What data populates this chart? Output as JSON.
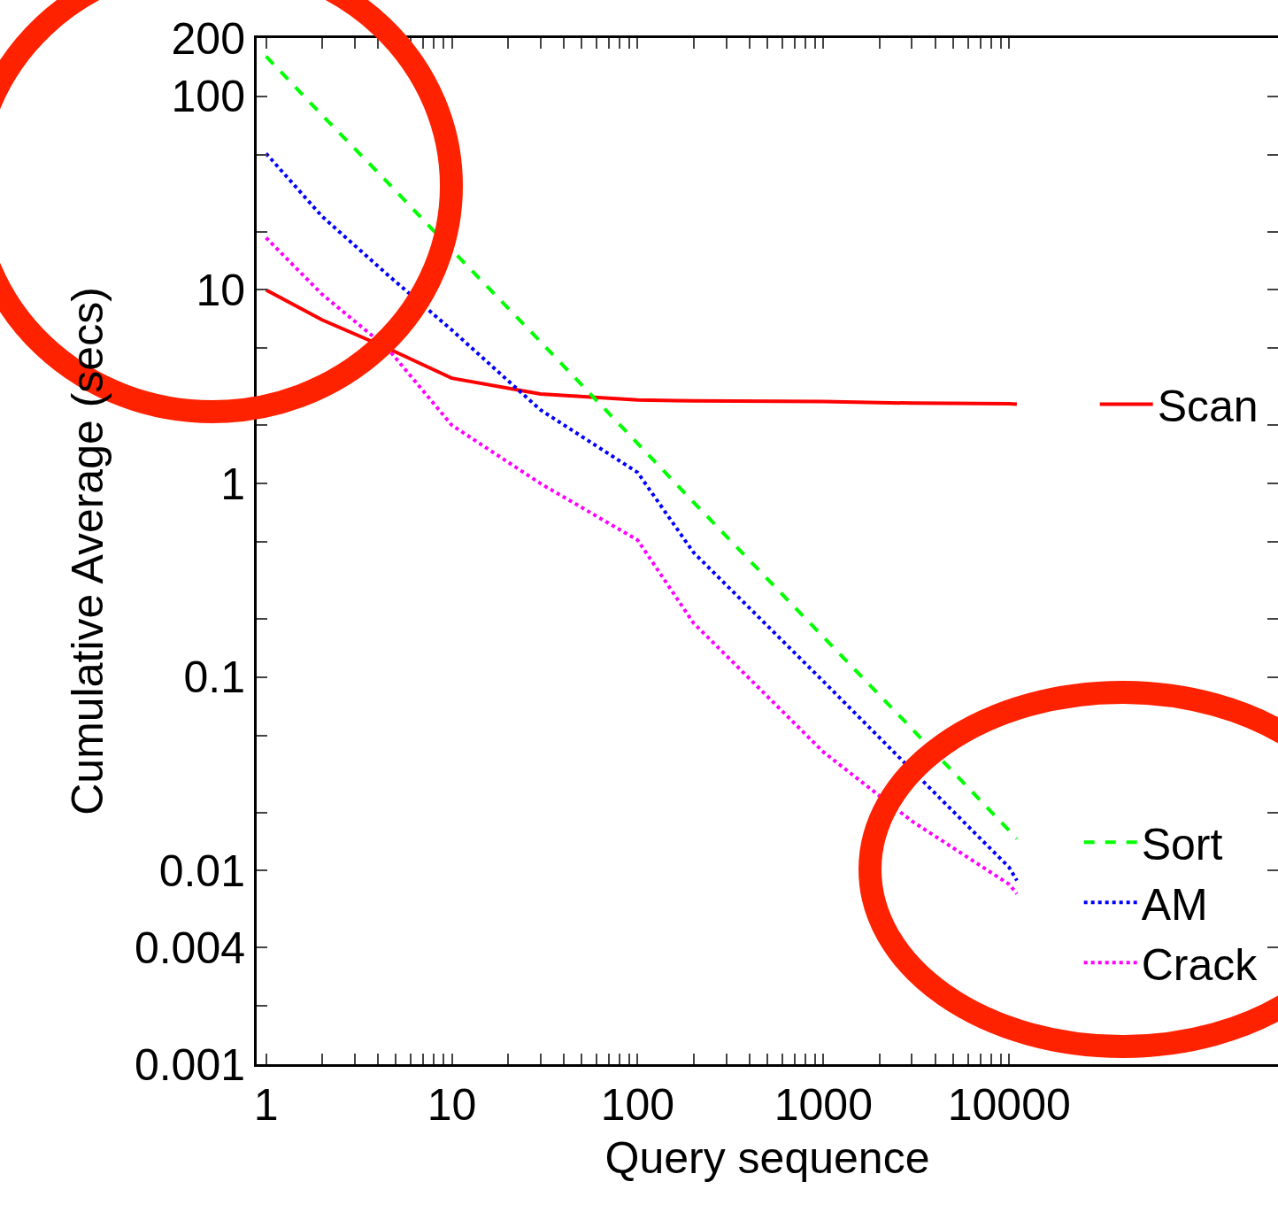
{
  "chart_data": {
    "type": "line",
    "xlabel": "Query sequence",
    "ylabel": "Cumulative Average (secs)",
    "log": "xy",
    "legend": "right",
    "xlim": [
      0.89,
      280000
    ],
    "ylim": [
      0.001,
      200
    ],
    "xticks": [
      1,
      {
        "value": 2,
        "label": null
      },
      {
        "value": 3,
        "label": null
      },
      {
        "value": 4,
        "label": null
      },
      {
        "value": 5,
        "label": null
      },
      {
        "value": 6,
        "label": null
      },
      {
        "value": 7,
        "label": null
      },
      {
        "value": 8,
        "label": null
      },
      {
        "value": 9,
        "label": null
      },
      10,
      {
        "value": 20,
        "label": null
      },
      {
        "value": 30,
        "label": null
      },
      {
        "value": 40,
        "label": null
      },
      {
        "value": 50,
        "label": null
      },
      {
        "value": 60,
        "label": null
      },
      {
        "value": 70,
        "label": null
      },
      {
        "value": 80,
        "label": null
      },
      {
        "value": 90,
        "label": null
      },
      100,
      {
        "value": 200,
        "label": null
      },
      {
        "value": 300,
        "label": null
      },
      {
        "value": 400,
        "label": null
      },
      {
        "value": 500,
        "label": null
      },
      {
        "value": 600,
        "label": null
      },
      {
        "value": 700,
        "label": null
      },
      {
        "value": 800,
        "label": null
      },
      {
        "value": 900,
        "label": null
      },
      1000,
      {
        "value": 2000,
        "label": null
      },
      {
        "value": 3000,
        "label": null
      },
      {
        "value": 4000,
        "label": null
      },
      {
        "value": 5000,
        "label": null
      },
      {
        "value": 6000,
        "label": null
      },
      {
        "value": 7000,
        "label": null
      },
      {
        "value": 8000,
        "label": null
      },
      {
        "value": 9000,
        "label": null
      },
      10000
    ],
    "yticks": [
      200,
      100,
      {
        "value": 50,
        "label": null
      },
      {
        "value": 20,
        "label": null
      },
      10,
      {
        "value": 5,
        "label": null
      },
      {
        "value": 2,
        "label": null
      },
      1,
      {
        "value": 0.5,
        "label": null
      },
      {
        "value": 0.2,
        "label": null
      },
      0.1,
      {
        "value": 0.05,
        "label": null
      },
      {
        "value": 0.02,
        "label": null
      },
      0.01,
      0.004,
      {
        "value": 0.002,
        "label": null
      },
      0.001
    ],
    "x": [
      1,
      2,
      4.5,
      10,
      30,
      100,
      200,
      1000,
      3000,
      10000,
      11000
    ],
    "series": [
      {
        "name": "Scan",
        "color": "#ff0000",
        "line_style": "solid",
        "values": [
          10,
          7,
          5,
          3.5,
          2.9,
          2.7,
          2.67,
          2.65,
          2.6,
          2.58,
          2.57
        ]
      },
      {
        "name": "Sort",
        "color": "#00ff00",
        "line_style": "dashed",
        "values": [
          161,
          80,
          36,
          16.1,
          5.4,
          1.61,
          0.8,
          0.161,
          0.054,
          0.0161,
          0.0146
        ]
      },
      {
        "name": "AM",
        "color": "#0000ff",
        "line_style": "dotted",
        "values": [
          50.7,
          24,
          12,
          6.2,
          2.4,
          1.14,
          0.44,
          0.095,
          0.033,
          0.0104,
          0.0089
        ]
      },
      {
        "name": "Crack",
        "color": "#ff00ff",
        "line_style": "dotted",
        "values": [
          18.6,
          9.5,
          5,
          2.0,
          1.0,
          0.51,
          0.19,
          0.041,
          0.018,
          0.0085,
          0.0076
        ]
      }
    ]
  }
}
